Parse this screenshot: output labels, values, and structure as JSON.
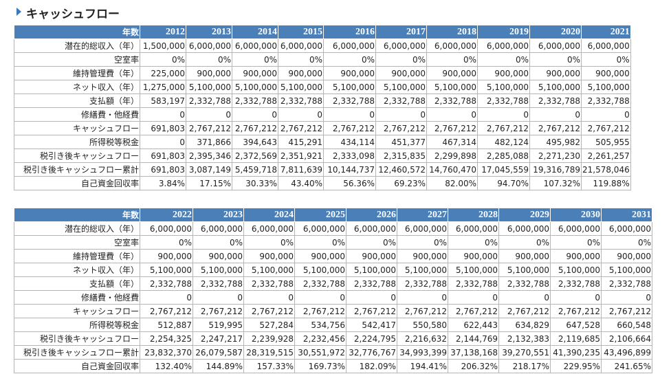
{
  "title": "キャッシュフロー",
  "tables": [
    {
      "header": [
        "年数",
        "2012",
        "2013",
        "2014",
        "2015",
        "2016",
        "2017",
        "2018",
        "2019",
        "2020",
        "2021"
      ],
      "rows": [
        [
          "潜在的総収入（年）",
          "1,500,000",
          "6,000,000",
          "6,000,000",
          "6,000,000",
          "6,000,000",
          "6,000,000",
          "6,000,000",
          "6,000,000",
          "6,000,000",
          "6,000,000"
        ],
        [
          "空室率",
          "0%",
          "0%",
          "0%",
          "0%",
          "0%",
          "0%",
          "0%",
          "0%",
          "0%",
          "0%"
        ],
        [
          "維持管理費（年）",
          "225,000",
          "900,000",
          "900,000",
          "900,000",
          "900,000",
          "900,000",
          "900,000",
          "900,000",
          "900,000",
          "900,000"
        ],
        [
          "ネット収入（年）",
          "1,275,000",
          "5,100,000",
          "5,100,000",
          "5,100,000",
          "5,100,000",
          "5,100,000",
          "5,100,000",
          "5,100,000",
          "5,100,000",
          "5,100,000"
        ],
        [
          "支払額（年）",
          "583,197",
          "2,332,788",
          "2,332,788",
          "2,332,788",
          "2,332,788",
          "2,332,788",
          "2,332,788",
          "2,332,788",
          "2,332,788",
          "2,332,788"
        ],
        [
          "修繕費・他経費",
          "0",
          "0",
          "0",
          "0",
          "0",
          "0",
          "0",
          "0",
          "0",
          "0"
        ],
        [
          "キャッシュフロー",
          "691,803",
          "2,767,212",
          "2,767,212",
          "2,767,212",
          "2,767,212",
          "2,767,212",
          "2,767,212",
          "2,767,212",
          "2,767,212",
          "2,767,212"
        ],
        [
          "所得税等税金",
          "0",
          "371,866",
          "394,643",
          "415,291",
          "434,114",
          "451,377",
          "467,314",
          "482,124",
          "495,982",
          "505,955"
        ],
        [
          "税引き後キャッシュフロー",
          "691,803",
          "2,395,346",
          "2,372,569",
          "2,351,921",
          "2,333,098",
          "2,315,835",
          "2,299,898",
          "2,285,088",
          "2,271,230",
          "2,261,257"
        ],
        [
          "税引き後キャッシュフロー累計",
          "691,803",
          "3,087,149",
          "5,459,718",
          "7,811,639",
          "10,144,737",
          "12,460,572",
          "14,760,470",
          "17,045,559",
          "19,316,789",
          "21,578,046"
        ],
        [
          "自己資金回収率",
          "3.84%",
          "17.15%",
          "30.33%",
          "43.40%",
          "56.36%",
          "69.23%",
          "82.00%",
          "94.70%",
          "107.32%",
          "119.88%"
        ]
      ]
    },
    {
      "header": [
        "年数",
        "2022",
        "2023",
        "2024",
        "2025",
        "2026",
        "2027",
        "2028",
        "2029",
        "2030",
        "2031"
      ],
      "rows": [
        [
          "潜在的総収入（年）",
          "6,000,000",
          "6,000,000",
          "6,000,000",
          "6,000,000",
          "6,000,000",
          "6,000,000",
          "6,000,000",
          "6,000,000",
          "6,000,000",
          "6,000,000"
        ],
        [
          "空室率",
          "0%",
          "0%",
          "0%",
          "0%",
          "0%",
          "0%",
          "0%",
          "0%",
          "0%",
          "0%"
        ],
        [
          "維持管理費（年）",
          "900,000",
          "900,000",
          "900,000",
          "900,000",
          "900,000",
          "900,000",
          "900,000",
          "900,000",
          "900,000",
          "900,000"
        ],
        [
          "ネット収入（年）",
          "5,100,000",
          "5,100,000",
          "5,100,000",
          "5,100,000",
          "5,100,000",
          "5,100,000",
          "5,100,000",
          "5,100,000",
          "5,100,000",
          "5,100,000"
        ],
        [
          "支払額（年）",
          "2,332,788",
          "2,332,788",
          "2,332,788",
          "2,332,788",
          "2,332,788",
          "2,332,788",
          "2,332,788",
          "2,332,788",
          "2,332,788",
          "2,332,788"
        ],
        [
          "修繕費・他経費",
          "0",
          "0",
          "0",
          "0",
          "0",
          "0",
          "0",
          "0",
          "0",
          "0"
        ],
        [
          "キャッシュフロー",
          "2,767,212",
          "2,767,212",
          "2,767,212",
          "2,767,212",
          "2,767,212",
          "2,767,212",
          "2,767,212",
          "2,767,212",
          "2,767,212",
          "2,767,212"
        ],
        [
          "所得税等税金",
          "512,887",
          "519,995",
          "527,284",
          "534,756",
          "542,417",
          "550,580",
          "622,443",
          "634,829",
          "647,528",
          "660,548"
        ],
        [
          "税引き後キャッシュフロー",
          "2,254,325",
          "2,247,217",
          "2,239,928",
          "2,232,456",
          "2,224,795",
          "2,216,632",
          "2,144,769",
          "2,132,383",
          "2,119,685",
          "2,106,664"
        ],
        [
          "税引き後キャッシュフロー累計",
          "23,832,370",
          "26,079,587",
          "28,319,515",
          "30,551,972",
          "32,776,767",
          "34,993,399",
          "37,138,168",
          "39,270,551",
          "41,390,235",
          "43,496,899"
        ],
        [
          "自己資金回収率",
          "132.40%",
          "144.89%",
          "157.33%",
          "169.73%",
          "182.09%",
          "194.41%",
          "206.32%",
          "218.17%",
          "229.95%",
          "241.65%"
        ]
      ]
    }
  ]
}
